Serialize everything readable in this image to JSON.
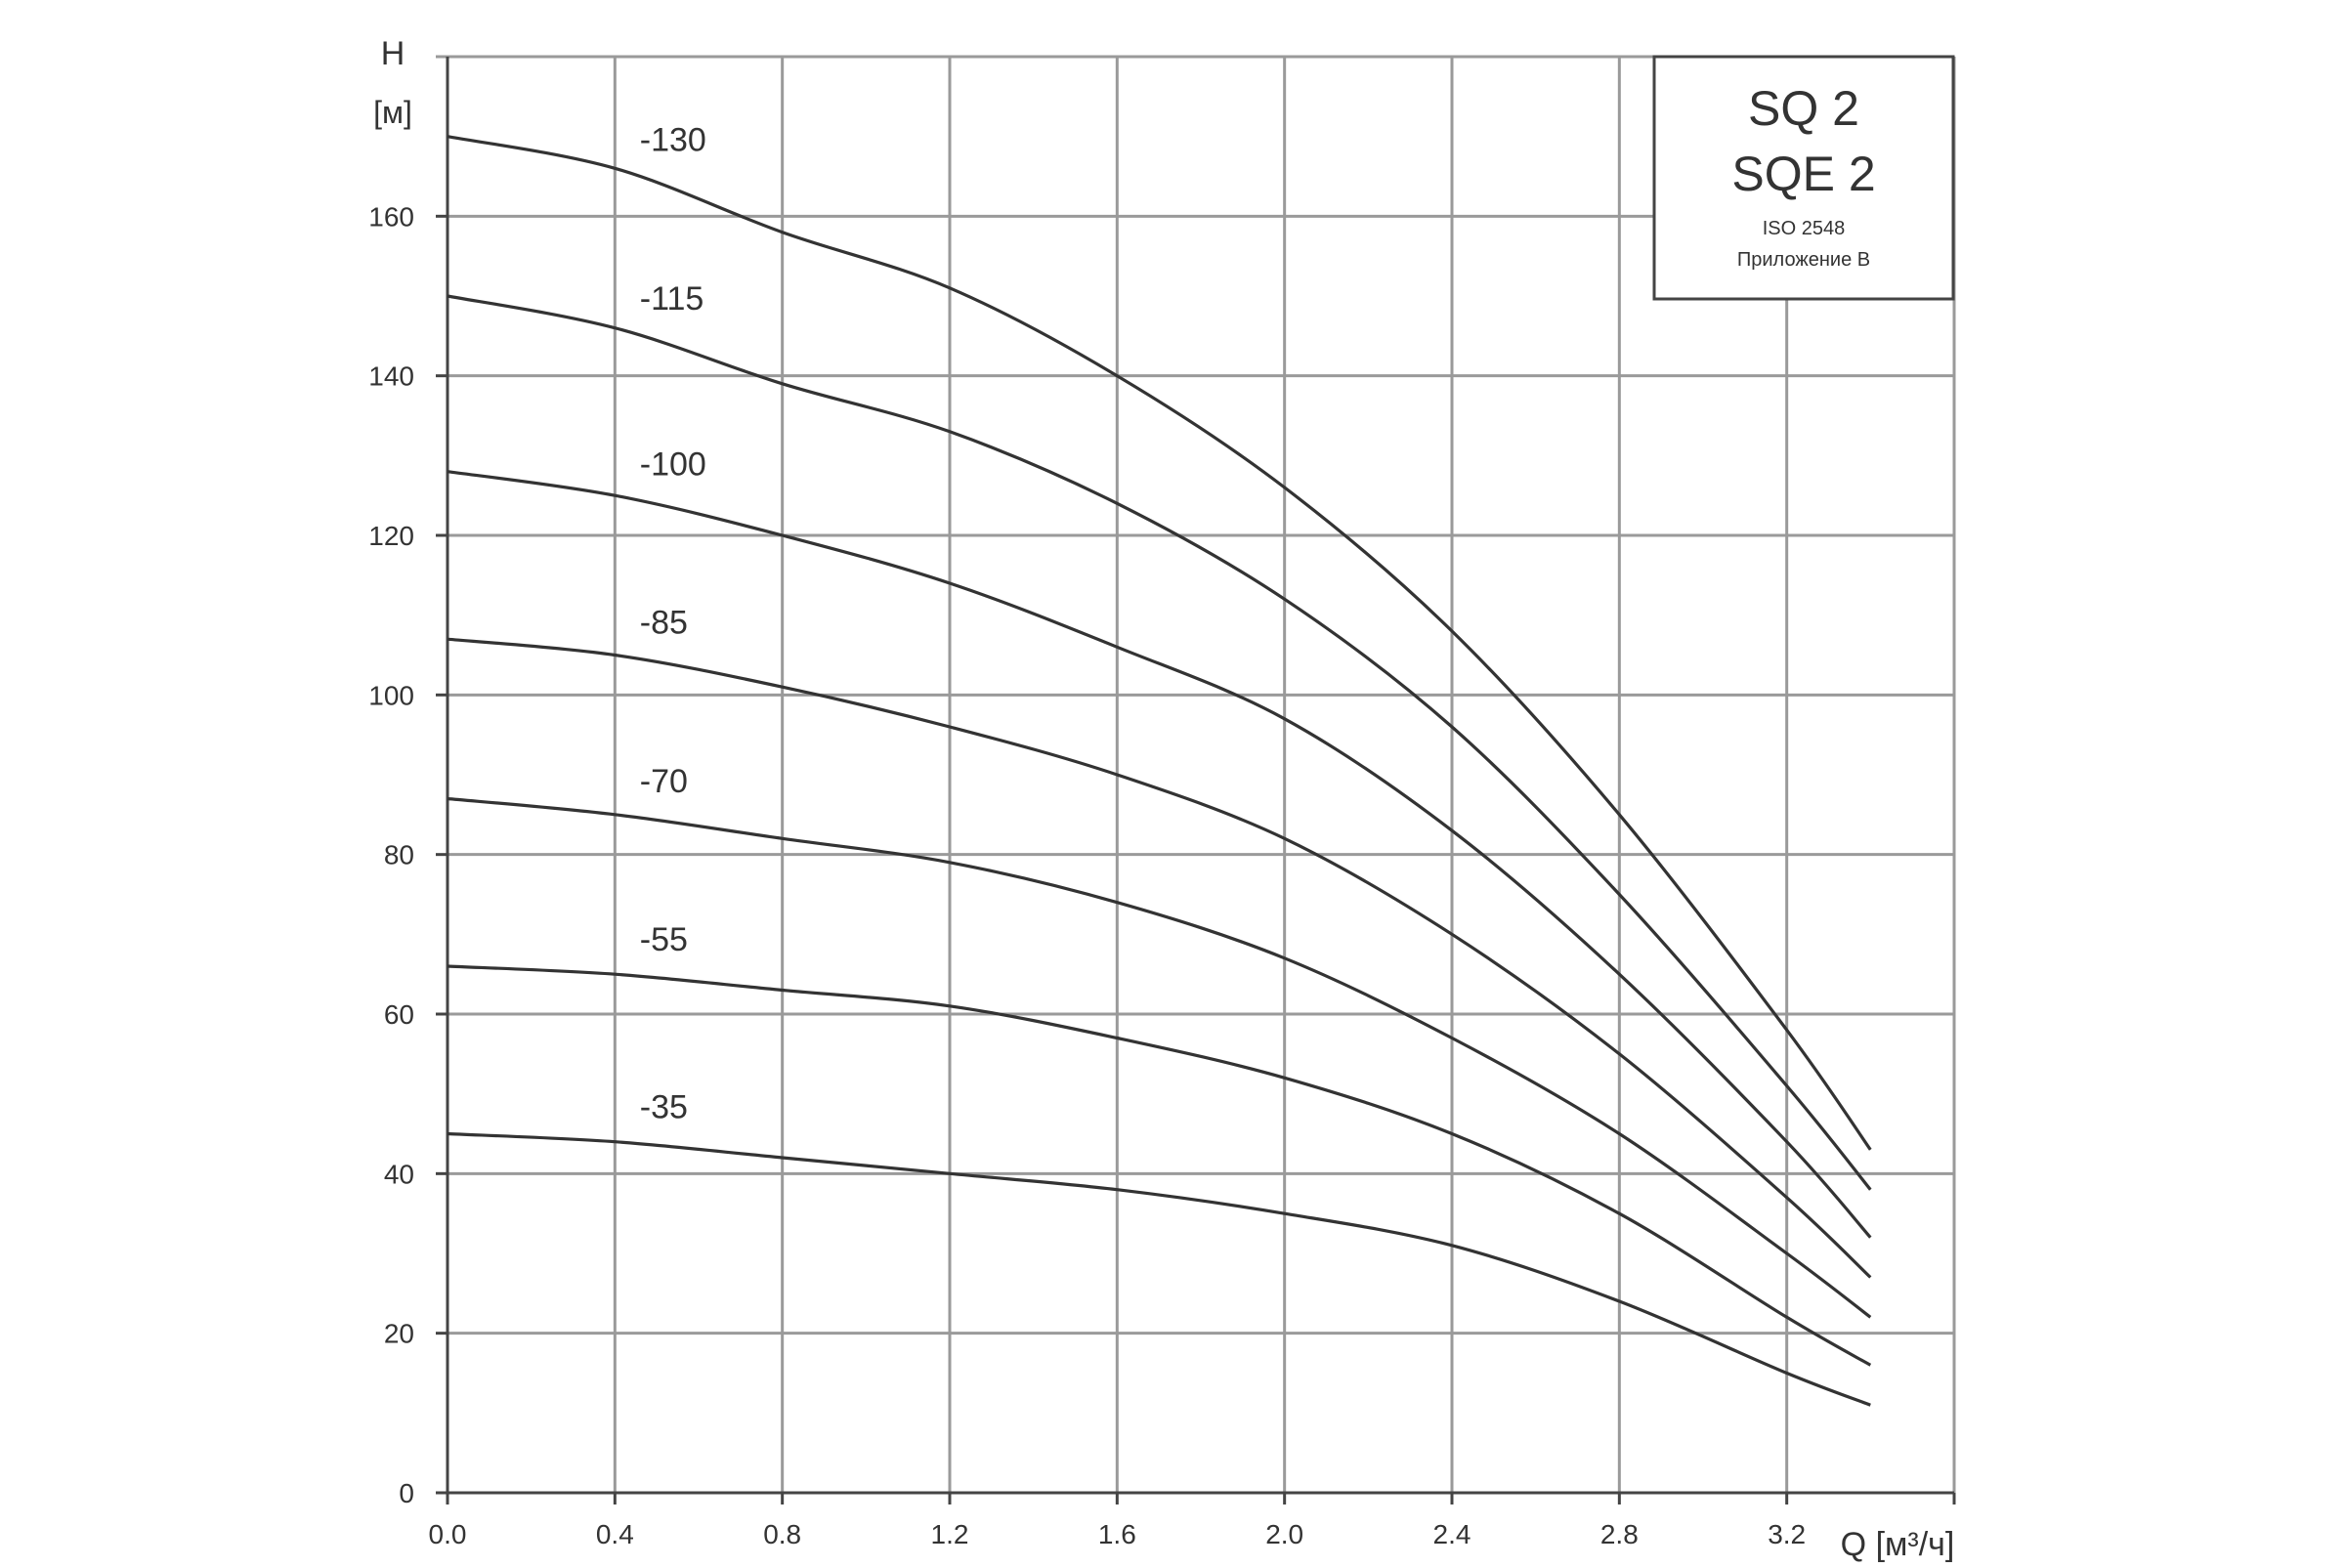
{
  "chart_data": {
    "type": "line",
    "title_box": {
      "line1": "SQ 2",
      "line2": "SQE 2",
      "line3": "ISO 2548",
      "line4": "Приложение В"
    },
    "y_label_symbol": "H",
    "y_label_unit": "[м]",
    "x_label": "Q [м³/ч]",
    "xlim": [
      0.0,
      3.6
    ],
    "ylim": [
      0,
      180
    ],
    "x_ticks": [
      "0.0",
      "0.4",
      "0.8",
      "1.2",
      "1.6",
      "2.0",
      "2.4",
      "2.8",
      "3.2"
    ],
    "y_ticks": [
      "0",
      "20",
      "40",
      "60",
      "80",
      "100",
      "120",
      "140",
      "160"
    ],
    "grid": true,
    "line_color": "#333333",
    "grid_color": "#9a9a9a",
    "series": [
      {
        "name": "-130",
        "label_x": 0.45,
        "x": [
          0.0,
          0.4,
          0.8,
          1.2,
          1.6,
          2.0,
          2.4,
          2.8,
          3.2,
          3.4
        ],
        "y": [
          170,
          166,
          158,
          151,
          140,
          126,
          108,
          85,
          58,
          43
        ]
      },
      {
        "name": "-115",
        "label_x": 0.45,
        "x": [
          0.0,
          0.4,
          0.8,
          1.2,
          1.6,
          2.0,
          2.4,
          2.8,
          3.2,
          3.4
        ],
        "y": [
          150,
          146,
          139,
          133,
          124,
          112,
          96,
          75,
          51,
          38
        ]
      },
      {
        "name": "-100",
        "label_x": 0.45,
        "x": [
          0.0,
          0.4,
          0.8,
          1.2,
          1.6,
          2.0,
          2.4,
          2.8,
          3.2,
          3.4
        ],
        "y": [
          128,
          125,
          120,
          114,
          106,
          97,
          83,
          65,
          44,
          32
        ]
      },
      {
        "name": "-85",
        "label_x": 0.45,
        "x": [
          0.0,
          0.4,
          0.8,
          1.2,
          1.6,
          2.0,
          2.4,
          2.8,
          3.2,
          3.4
        ],
        "y": [
          107,
          105,
          101,
          96,
          90,
          82,
          70,
          55,
          37,
          27
        ]
      },
      {
        "name": "-70",
        "label_x": 0.45,
        "x": [
          0.0,
          0.4,
          0.8,
          1.2,
          1.6,
          2.0,
          2.4,
          2.8,
          3.2,
          3.4
        ],
        "y": [
          87,
          85,
          82,
          79,
          74,
          67,
          57,
          45,
          30,
          22
        ]
      },
      {
        "name": "-55",
        "label_x": 0.45,
        "x": [
          0.0,
          0.4,
          0.8,
          1.2,
          1.6,
          2.0,
          2.4,
          2.8,
          3.2,
          3.4
        ],
        "y": [
          66,
          65,
          63,
          61,
          57,
          52,
          45,
          35,
          22,
          16
        ]
      },
      {
        "name": "-35",
        "label_x": 0.45,
        "x": [
          0.0,
          0.4,
          0.8,
          1.2,
          1.6,
          2.0,
          2.4,
          2.8,
          3.2,
          3.4
        ],
        "y": [
          45,
          44,
          42,
          40,
          38,
          35,
          31,
          24,
          15,
          11
        ]
      }
    ]
  }
}
